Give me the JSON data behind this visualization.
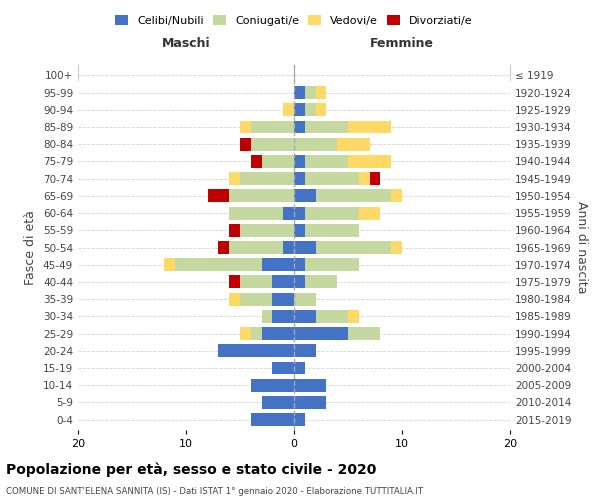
{
  "age_groups": [
    "0-4",
    "5-9",
    "10-14",
    "15-19",
    "20-24",
    "25-29",
    "30-34",
    "35-39",
    "40-44",
    "45-49",
    "50-54",
    "55-59",
    "60-64",
    "65-69",
    "70-74",
    "75-79",
    "80-84",
    "85-89",
    "90-94",
    "95-99",
    "100+"
  ],
  "birth_years": [
    "2015-2019",
    "2010-2014",
    "2005-2009",
    "2000-2004",
    "1995-1999",
    "1990-1994",
    "1985-1989",
    "1980-1984",
    "1975-1979",
    "1970-1974",
    "1965-1969",
    "1960-1964",
    "1955-1959",
    "1950-1954",
    "1945-1949",
    "1940-1944",
    "1935-1939",
    "1930-1934",
    "1925-1929",
    "1920-1924",
    "≤ 1919"
  ],
  "colors": {
    "celibi": "#4472c4",
    "coniugati": "#c5d8a0",
    "vedovi": "#ffd966",
    "divorziati": "#c00000"
  },
  "maschi": {
    "celibi": [
      4,
      3,
      4,
      2,
      7,
      3,
      2,
      2,
      2,
      3,
      1,
      0,
      1,
      0,
      0,
      0,
      0,
      0,
      0,
      0,
      0
    ],
    "coniugati": [
      0,
      0,
      0,
      0,
      0,
      1,
      1,
      3,
      3,
      8,
      5,
      5,
      5,
      6,
      5,
      3,
      4,
      4,
      0,
      0,
      0
    ],
    "vedovi": [
      0,
      0,
      0,
      0,
      0,
      1,
      0,
      1,
      0,
      1,
      0,
      0,
      0,
      0,
      1,
      0,
      0,
      1,
      1,
      0,
      0
    ],
    "divorziati": [
      0,
      0,
      0,
      0,
      0,
      0,
      0,
      0,
      1,
      0,
      1,
      1,
      0,
      2,
      0,
      1,
      1,
      0,
      0,
      0,
      0
    ]
  },
  "femmine": {
    "celibi": [
      1,
      3,
      3,
      1,
      2,
      5,
      2,
      0,
      1,
      1,
      2,
      1,
      1,
      2,
      1,
      1,
      0,
      1,
      1,
      1,
      0
    ],
    "coniugati": [
      0,
      0,
      0,
      0,
      0,
      3,
      3,
      2,
      3,
      5,
      7,
      5,
      5,
      7,
      5,
      4,
      4,
      4,
      1,
      1,
      0
    ],
    "vedovi": [
      0,
      0,
      0,
      0,
      0,
      0,
      1,
      0,
      0,
      0,
      1,
      0,
      2,
      1,
      1,
      4,
      3,
      4,
      1,
      1,
      0
    ],
    "divorziati": [
      0,
      0,
      0,
      0,
      0,
      0,
      0,
      0,
      0,
      0,
      0,
      0,
      0,
      0,
      1,
      0,
      0,
      0,
      0,
      0,
      0
    ]
  },
  "xlim": [
    -20,
    20
  ],
  "xticks": [
    -20,
    -10,
    0,
    10,
    20
  ],
  "xticklabels": [
    "20",
    "10",
    "0",
    "10",
    "20"
  ],
  "title": "Popolazione per età, sesso e stato civile - 2020",
  "subtitle": "COMUNE DI SANT'ELENA SANNITA (IS) - Dati ISTAT 1° gennaio 2020 - Elaborazione TUTTITALIA.IT",
  "ylabel_left": "Fasce di età",
  "ylabel_right": "Anni di nascita",
  "header_maschi": "Maschi",
  "header_femmine": "Femmine",
  "legend_labels": [
    "Celibi/Nubili",
    "Coniugati/e",
    "Vedovi/e",
    "Divorziati/e"
  ],
  "bar_height": 0.75
}
